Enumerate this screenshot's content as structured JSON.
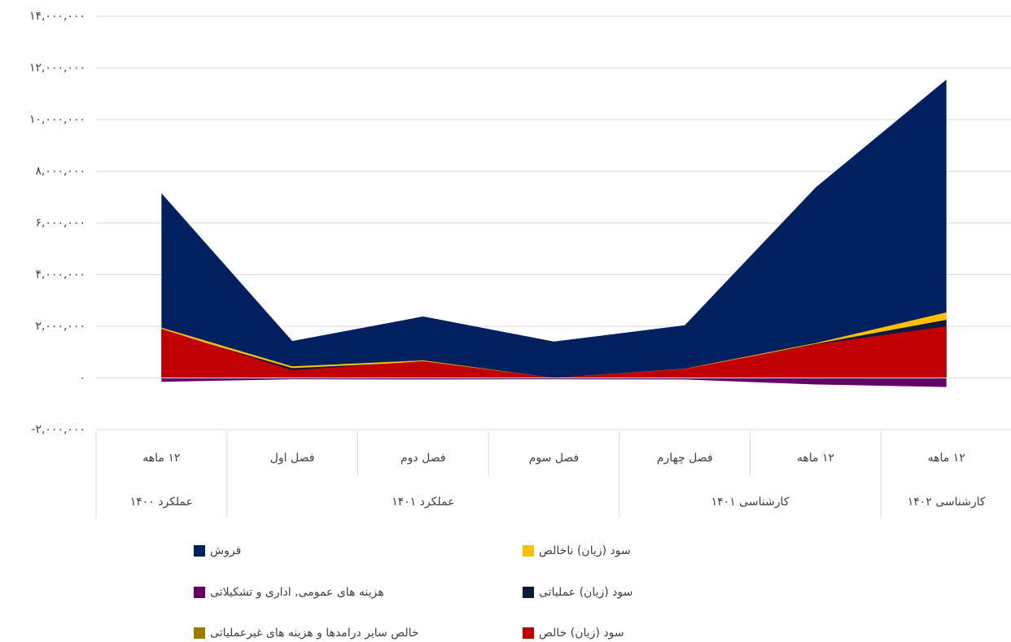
{
  "chart_data": {
    "type": "area",
    "categories": [
      "۱۲ ماهه",
      "فصل اول",
      "فصل دوم",
      "فصل سوم",
      "فصل چهارم",
      "۱۲ ماهه",
      "۱۲ ماهه"
    ],
    "category_groups": [
      "عملکرد ۱۴۰۰",
      "عملکرد ۱۴۰۱",
      "عملکرد ۱۴۰۱",
      "عملکرد ۱۴۰۱",
      "کارشناسی ۱۴۰۱",
      "کارشناسی ۱۴۰۱",
      "کارشناسی ۱۴۰۲"
    ],
    "series": [
      {
        "name": "فروش",
        "color": "#002060",
        "values": [
          7150000,
          1430000,
          2380000,
          1410000,
          2040000,
          7370000,
          11550000
        ]
      },
      {
        "name": "سود (زیان) ناخالص",
        "color": "#ffc000",
        "values": [
          1950000,
          450000,
          680000,
          0,
          360000,
          1350000,
          2540000
        ]
      },
      {
        "name": "هزینه های عمومی, اداری و تشکیلاتی",
        "color": "#660066",
        "values": [
          -150000,
          -50000,
          -60000,
          -50000,
          -60000,
          -250000,
          -350000
        ]
      },
      {
        "name": "سود (زیان) عملیاتی",
        "color": "#0c1a3c",
        "values": [
          1850000,
          380000,
          620000,
          -30000,
          320000,
          1320000,
          2250000
        ]
      },
      {
        "name": "خالص سایر درامدها و هزینه های غیرعملیاتی",
        "color": "#9c7b00",
        "values": [
          20000,
          20000,
          20000,
          20000,
          20000,
          30000,
          30000
        ]
      },
      {
        "name": "سود (زیان) خالص",
        "color": "#c00000",
        "values": [
          1900000,
          300000,
          650000,
          0,
          350000,
          1300000,
          2000000
        ]
      }
    ],
    "ylim": [
      -2000000,
      14000000
    ],
    "yticks": [
      {
        "value": -2000000,
        "label": "-۲,۰۰۰,۰۰۰"
      },
      {
        "value": 0,
        "label": "۰"
      },
      {
        "value": 2000000,
        "label": "۲,۰۰۰,۰۰۰"
      },
      {
        "value": 4000000,
        "label": "۴,۰۰۰,۰۰۰"
      },
      {
        "value": 6000000,
        "label": "۶,۰۰۰,۰۰۰"
      },
      {
        "value": 8000000,
        "label": "۸,۰۰۰,۰۰۰"
      },
      {
        "value": 10000000,
        "label": "۱۰,۰۰۰,۰۰۰"
      },
      {
        "value": 12000000,
        "label": "۱۲,۰۰۰,۰۰۰"
      },
      {
        "value": 14000000,
        "label": "۱۴,۰۰۰,۰۰۰"
      }
    ],
    "grid": true
  }
}
